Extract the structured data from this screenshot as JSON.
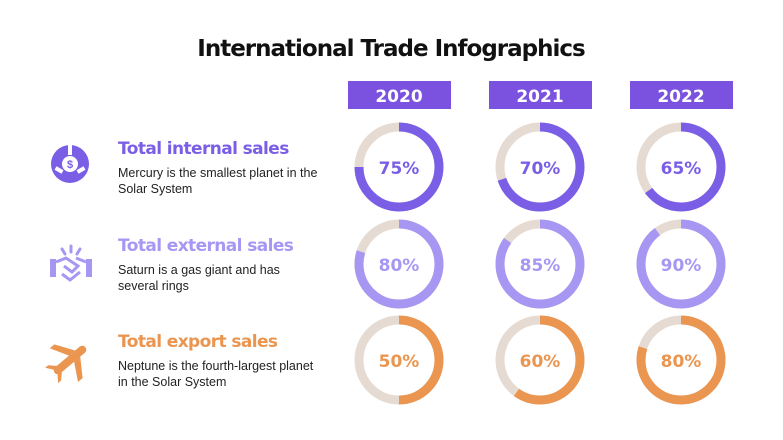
{
  "title": "International Trade Infographics",
  "years": [
    "2020",
    "2021",
    "2022"
  ],
  "year_color": "#7b52e0",
  "track_color": "#e6dbd2",
  "rows": [
    {
      "heading": "Total internal sales",
      "description": "Mercury is the smallest planet in the Solar System",
      "color": "#7a5fe6",
      "values": [
        {
          "value": 75,
          "label": "75%"
        },
        {
          "value": 70,
          "label": "70%"
        },
        {
          "value": 65,
          "label": "65%"
        }
      ]
    },
    {
      "heading": "Total external sales",
      "description": "Saturn is a gas giant and has several rings",
      "color": "#a797f3",
      "values": [
        {
          "value": 80,
          "label": "80%"
        },
        {
          "value": 85,
          "label": "85%"
        },
        {
          "value": 90,
          "label": "90%"
        }
      ]
    },
    {
      "heading": "Total export sales",
      "description": "Neptune is the fourth-largest planet in the Solar System",
      "color": "#ea9550",
      "values": [
        {
          "value": 50,
          "label": "50%"
        },
        {
          "value": 60,
          "label": "60%"
        },
        {
          "value": 80,
          "label": "80%"
        }
      ]
    }
  ]
}
